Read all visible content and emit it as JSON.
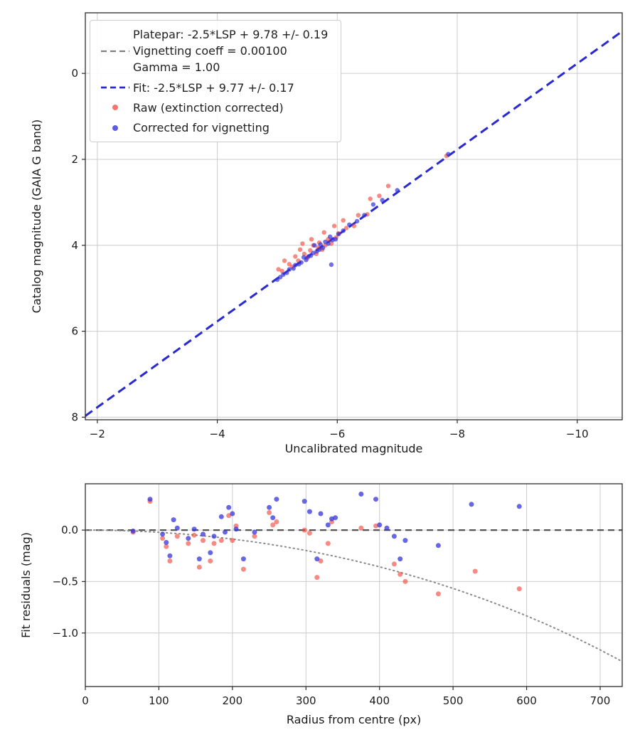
{
  "figure": {
    "background": "#ffffff"
  },
  "colors": {
    "platepar_gray": "#7f7f7f",
    "fit_blue": "#2a2ad4",
    "raw_red": "#f23c30",
    "corrected_blue": "#3434dc",
    "grid": "#cccccc",
    "axis": "#2b2b2b",
    "vignetting_curve": "#8a8a8a",
    "zero_line": "#555555"
  },
  "legend": {
    "platepar_label_line1": "Platepar: -2.5*LSP + 9.78 +/- 0.19",
    "platepar_label_line2": "Vignetting coeff = 0.00100",
    "platepar_label_line3": "Gamma = 1.00",
    "fit_label": "Fit: -2.5*LSP + 9.77 +/- 0.17",
    "raw_label": "Raw (extinction corrected)",
    "corrected_label": "Corrected for vignetting"
  },
  "chart_data": [
    {
      "type": "scatter",
      "title": "",
      "xlabel": "Uncalibrated magnitude",
      "ylabel": "Catalog magnitude (GAIA G band)",
      "xlim": [
        -1.8,
        -10.75
      ],
      "ylim_bottom": 8.06,
      "ylim_top": -1.41,
      "x_inverted": true,
      "y_inverted": true,
      "grid": true,
      "legend_position": "upper left",
      "x_ticks": [
        {
          "v": -2,
          "label": "−2"
        },
        {
          "v": -4,
          "label": "−4"
        },
        {
          "v": -6,
          "label": "−6"
        },
        {
          "v": -8,
          "label": "−8"
        },
        {
          "v": -10,
          "label": "−10"
        }
      ],
      "y_ticks": [
        {
          "v": 0,
          "label": "0"
        },
        {
          "v": 2,
          "label": "2"
        },
        {
          "v": 4,
          "label": "4"
        },
        {
          "v": 6,
          "label": "6"
        },
        {
          "v": 8,
          "label": "8"
        }
      ],
      "lines": [
        {
          "name": "platepar",
          "equation": "-2.5*LSP + 9.78 +/- 0.19",
          "slope": 1,
          "intercept": 9.78,
          "style": "dashed",
          "color_key": "platepar_gray",
          "width": 2
        },
        {
          "name": "fit",
          "equation": "-2.5*LSP + 9.77 +/- 0.17",
          "slope": 1,
          "intercept": 9.77,
          "style": "dashed",
          "color_key": "fit_blue",
          "width": 3
        }
      ],
      "series": [
        {
          "name": "Raw (extinction corrected)",
          "color_key": "raw_red",
          "marker_radius": 3.2,
          "opacity": 0.6,
          "points": [
            [
              -7.82,
              1.92
            ],
            [
              -6.85,
              2.62
            ],
            [
              -6.7,
              2.85
            ],
            [
              -6.55,
              2.92
            ],
            [
              -6.5,
              3.28
            ],
            [
              -6.35,
              3.3
            ],
            [
              -6.28,
              3.55
            ],
            [
              -6.15,
              3.6
            ],
            [
              -6.1,
              3.42
            ],
            [
              -6.02,
              3.72
            ],
            [
              -5.98,
              3.82
            ],
            [
              -5.95,
              3.55
            ],
            [
              -5.9,
              3.96
            ],
            [
              -5.85,
              3.86
            ],
            [
              -5.8,
              4.0
            ],
            [
              -5.78,
              3.7
            ],
            [
              -5.75,
              4.1
            ],
            [
              -5.7,
              3.94
            ],
            [
              -5.68,
              4.06
            ],
            [
              -5.65,
              4.2
            ],
            [
              -5.6,
              4.0
            ],
            [
              -5.57,
              3.86
            ],
            [
              -5.55,
              4.12
            ],
            [
              -5.5,
              4.3
            ],
            [
              -5.45,
              4.2
            ],
            [
              -5.42,
              3.96
            ],
            [
              -5.38,
              4.1
            ],
            [
              -5.35,
              4.36
            ],
            [
              -5.3,
              4.26
            ],
            [
              -5.25,
              4.5
            ],
            [
              -5.2,
              4.44
            ],
            [
              -5.12,
              4.36
            ],
            [
              -5.08,
              4.6
            ],
            [
              -5.02,
              4.56
            ]
          ]
        },
        {
          "name": "Corrected for vignetting",
          "color_key": "corrected_blue",
          "marker_radius": 3.2,
          "opacity": 0.7,
          "points": [
            [
              -7.85,
              1.88
            ],
            [
              -7.0,
              2.72
            ],
            [
              -6.75,
              2.95
            ],
            [
              -6.6,
              3.05
            ],
            [
              -6.45,
              3.3
            ],
            [
              -6.33,
              3.44
            ],
            [
              -6.2,
              3.52
            ],
            [
              -6.1,
              3.66
            ],
            [
              -6.02,
              3.74
            ],
            [
              -5.97,
              3.86
            ],
            [
              -5.92,
              3.88
            ],
            [
              -5.9,
              4.45
            ],
            [
              -5.88,
              3.8
            ],
            [
              -5.85,
              3.96
            ],
            [
              -5.8,
              3.92
            ],
            [
              -5.76,
              4.06
            ],
            [
              -5.72,
              3.98
            ],
            [
              -5.7,
              4.1
            ],
            [
              -5.66,
              4.14
            ],
            [
              -5.62,
              4.0
            ],
            [
              -5.6,
              4.18
            ],
            [
              -5.56,
              4.24
            ],
            [
              -5.52,
              4.26
            ],
            [
              -5.48,
              4.34
            ],
            [
              -5.44,
              4.28
            ],
            [
              -5.4,
              4.4
            ],
            [
              -5.36,
              4.44
            ],
            [
              -5.3,
              4.46
            ],
            [
              -5.27,
              4.54
            ],
            [
              -5.2,
              4.56
            ],
            [
              -5.16,
              4.64
            ],
            [
              -5.1,
              4.68
            ],
            [
              -5.05,
              4.74
            ],
            [
              -5.0,
              4.8
            ]
          ]
        }
      ]
    },
    {
      "type": "scatter",
      "title": "",
      "xlabel": "Radius from centre (px)",
      "ylabel": "Fit residuals (mag)",
      "xlim": [
        0,
        730
      ],
      "ylim_bottom": -1.52,
      "ylim_top": 0.45,
      "grid": true,
      "x_ticks": [
        {
          "v": 0,
          "label": "0"
        },
        {
          "v": 100,
          "label": "100"
        },
        {
          "v": 200,
          "label": "200"
        },
        {
          "v": 300,
          "label": "300"
        },
        {
          "v": 400,
          "label": "400"
        },
        {
          "v": 500,
          "label": "500"
        },
        {
          "v": 600,
          "label": "600"
        },
        {
          "v": 700,
          "label": "700"
        }
      ],
      "y_ticks": [
        {
          "v": 0,
          "label": "0.0"
        },
        {
          "v": -0.5,
          "label": "−0.5"
        },
        {
          "v": -1,
          "label": "−1.0"
        }
      ],
      "zero_line": {
        "style": "dashed",
        "color_key": "zero_line",
        "width": 2.2
      },
      "model_curve": {
        "name": "vignetting-model",
        "coeff": 0.001,
        "style": "dotted",
        "color_key": "vignetting_curve",
        "width": 2,
        "r_max": 730
      },
      "series": [
        {
          "name": "Raw (extinction corrected)",
          "color_key": "raw_red",
          "marker_radius": 3.5,
          "opacity": 0.6,
          "points": [
            [
              65,
              -0.02
            ],
            [
              88,
              0.28
            ],
            [
              105,
              -0.08
            ],
            [
              110,
              -0.16
            ],
            [
              115,
              -0.3
            ],
            [
              125,
              -0.06
            ],
            [
              140,
              -0.13
            ],
            [
              148,
              -0.05
            ],
            [
              155,
              -0.36
            ],
            [
              160,
              -0.1
            ],
            [
              170,
              -0.3
            ],
            [
              175,
              -0.13
            ],
            [
              185,
              -0.1
            ],
            [
              195,
              0.14
            ],
            [
              200,
              -0.1
            ],
            [
              205,
              0.04
            ],
            [
              215,
              -0.38
            ],
            [
              230,
              -0.06
            ],
            [
              250,
              0.17
            ],
            [
              255,
              0.05
            ],
            [
              260,
              0.08
            ],
            [
              298,
              0.0
            ],
            [
              305,
              -0.03
            ],
            [
              315,
              -0.46
            ],
            [
              320,
              -0.3
            ],
            [
              330,
              -0.13
            ],
            [
              335,
              0.08
            ],
            [
              375,
              0.02
            ],
            [
              395,
              0.04
            ],
            [
              420,
              -0.33
            ],
            [
              428,
              -0.43
            ],
            [
              435,
              -0.5
            ],
            [
              480,
              -0.62
            ],
            [
              530,
              -0.4
            ],
            [
              590,
              -0.57
            ]
          ]
        },
        {
          "name": "Corrected for vignetting",
          "color_key": "corrected_blue",
          "marker_radius": 3.5,
          "opacity": 0.75,
          "points": [
            [
              65,
              -0.01
            ],
            [
              88,
              0.3
            ],
            [
              105,
              -0.04
            ],
            [
              110,
              -0.12
            ],
            [
              115,
              -0.25
            ],
            [
              120,
              0.1
            ],
            [
              125,
              0.02
            ],
            [
              140,
              -0.08
            ],
            [
              148,
              0.01
            ],
            [
              155,
              -0.28
            ],
            [
              160,
              -0.04
            ],
            [
              170,
              -0.22
            ],
            [
              175,
              -0.06
            ],
            [
              185,
              0.13
            ],
            [
              190,
              -0.02
            ],
            [
              195,
              0.22
            ],
            [
              200,
              0.16
            ],
            [
              205,
              0.01
            ],
            [
              215,
              -0.28
            ],
            [
              230,
              -0.02
            ],
            [
              250,
              0.22
            ],
            [
              255,
              0.12
            ],
            [
              260,
              0.3
            ],
            [
              298,
              0.28
            ],
            [
              305,
              0.18
            ],
            [
              315,
              -0.28
            ],
            [
              320,
              0.16
            ],
            [
              330,
              0.05
            ],
            [
              335,
              0.11
            ],
            [
              340,
              0.12
            ],
            [
              375,
              0.35
            ],
            [
              395,
              0.3
            ],
            [
              400,
              0.05
            ],
            [
              410,
              0.02
            ],
            [
              420,
              -0.06
            ],
            [
              428,
              -0.28
            ],
            [
              435,
              -0.1
            ],
            [
              480,
              -0.15
            ],
            [
              525,
              0.25
            ],
            [
              590,
              0.23
            ]
          ]
        }
      ]
    }
  ]
}
